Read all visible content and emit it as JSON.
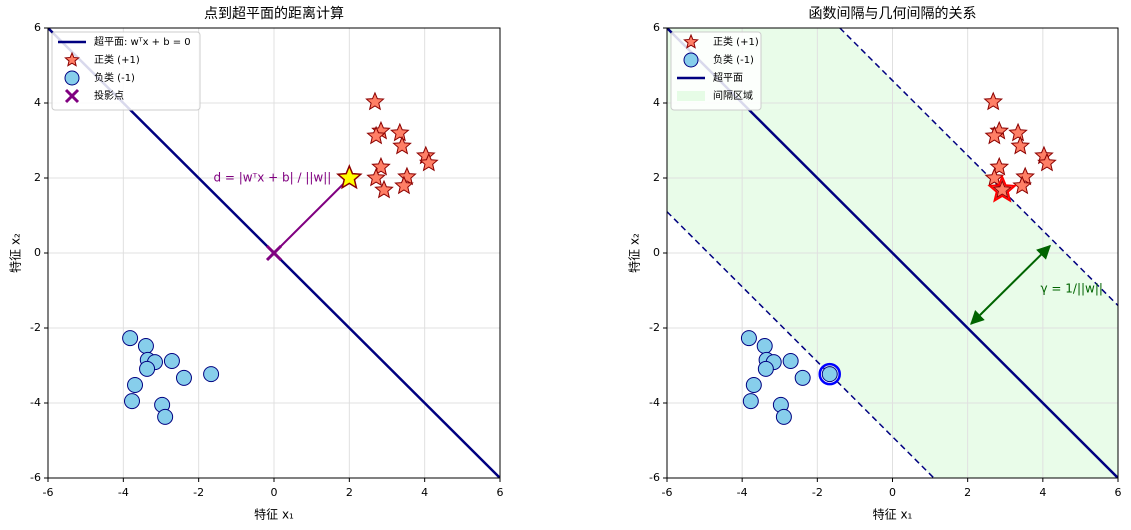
{
  "chart_data": [
    {
      "type": "scatter",
      "title": "点到超平面的距离计算",
      "x_label": "特征 x₁",
      "y_label": "特征 x₂",
      "xlim": [
        -6,
        6
      ],
      "ylim": [
        -6,
        6
      ],
      "xticks": [
        -6,
        -4,
        -2,
        0,
        2,
        4,
        6
      ],
      "yticks": [
        -6,
        -4,
        -2,
        0,
        2,
        4,
        6
      ],
      "grid": true,
      "series": [
        {
          "name": "超平面: wᵀx + b = 0",
          "marker": "line",
          "color": "#000080",
          "x": [
            -6,
            6
          ],
          "values": [
            6,
            -6
          ]
        },
        {
          "name": "正类 (+1)",
          "marker": "star",
          "color": "#ff7f66",
          "edge": "#8b0000",
          "x": [
            2.68,
            2.84,
            2.71,
            3.34,
            3.4,
            2.84,
            4.03,
            4.11,
            2.71,
            2.92,
            3.53,
            3.45
          ],
          "values": [
            4.03,
            3.25,
            3.12,
            3.2,
            2.85,
            2.29,
            2.59,
            2.4,
            2.0,
            1.68,
            2.03,
            1.79
          ]
        },
        {
          "name": "负类 (-1)",
          "marker": "circle",
          "color": "#87ceeb",
          "edge": "#000080",
          "x": [
            -3.82,
            -3.4,
            -3.35,
            -3.16,
            -3.37,
            -2.71,
            -3.69,
            -3.77,
            -2.39,
            -1.67,
            -2.97,
            -2.89
          ],
          "values": [
            -2.27,
            -2.48,
            -2.85,
            -2.91,
            -3.09,
            -2.88,
            -3.52,
            -3.95,
            -3.33,
            -3.23,
            -4.05,
            -4.37
          ]
        },
        {
          "name": "投影点",
          "marker": "x",
          "color": "#800080",
          "x": [
            0
          ],
          "values": [
            0
          ]
        }
      ],
      "target_point": {
        "x": 2,
        "y": 2,
        "color": "#ffff00"
      },
      "distance_line": {
        "x": [
          0,
          2
        ],
        "values": [
          0,
          2
        ],
        "color": "#800080"
      },
      "distance_label": "d = |wᵀx + b| / ||w||"
    },
    {
      "type": "scatter",
      "title": "函数间隔与几何间隔的关系",
      "x_label": "特征 x₁",
      "y_label": "特征 x₂",
      "xlim": [
        -6,
        6
      ],
      "ylim": [
        -6,
        6
      ],
      "xticks": [
        -6,
        -4,
        -2,
        0,
        2,
        4,
        6
      ],
      "yticks": [
        -6,
        -4,
        -2,
        0,
        2,
        4,
        6
      ],
      "grid": true,
      "series": [
        {
          "name": "正类 (+1)",
          "marker": "star",
          "color": "#ff7f66",
          "edge": "#8b0000",
          "x": [
            2.68,
            2.84,
            2.71,
            3.34,
            3.4,
            2.84,
            4.03,
            4.11,
            2.71,
            2.92,
            3.53,
            3.45
          ],
          "values": [
            4.03,
            3.25,
            3.12,
            3.2,
            2.85,
            2.29,
            2.59,
            2.4,
            2.0,
            1.68,
            2.03,
            1.79
          ]
        },
        {
          "name": "负类 (-1)",
          "marker": "circle",
          "color": "#87ceeb",
          "edge": "#000080",
          "x": [
            -3.82,
            -3.4,
            -3.35,
            -3.16,
            -3.37,
            -2.71,
            -3.69,
            -3.77,
            -2.39,
            -1.67,
            -2.97,
            -2.89
          ],
          "values": [
            -2.27,
            -2.48,
            -2.85,
            -2.91,
            -3.09,
            -2.88,
            -3.52,
            -3.95,
            -3.33,
            -3.23,
            -4.05,
            -4.37
          ]
        },
        {
          "name": "超平面",
          "marker": "line",
          "color": "#000080",
          "x": [
            -6,
            6
          ],
          "values": [
            6,
            -6
          ]
        }
      ],
      "margins": [
        {
          "x": [
            -1.4,
            6
          ],
          "values": [
            6,
            -1.4
          ]
        },
        {
          "x": [
            -6,
            1.1
          ],
          "values": [
            1.1,
            -6
          ]
        }
      ],
      "margin_color": "#000080",
      "region": {
        "name": "间隔区域",
        "color": "#90ee90"
      },
      "support_vectors": {
        "x": [
          2.92,
          -1.67
        ],
        "values": [
          1.68,
          -3.23
        ],
        "colors": [
          "#ff0000",
          "#0000ff"
        ]
      },
      "gamma_arrow": {
        "x": [
          2.09,
          4.19
        ],
        "values": [
          -1.89,
          0.19
        ],
        "color": "#006400"
      },
      "gamma_label": "γ = 1/||w||"
    }
  ]
}
